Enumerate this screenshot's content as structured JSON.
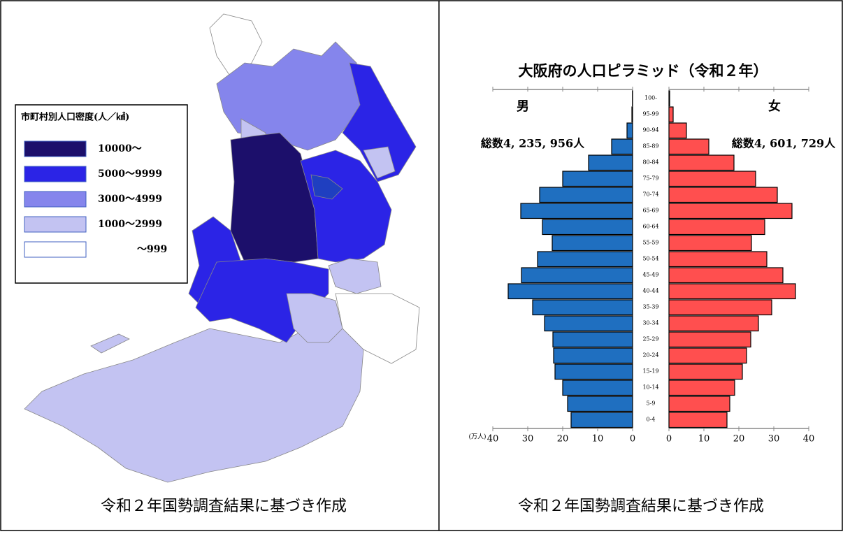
{
  "chart_data": [
    {
      "type": "map",
      "legend_title": "市町村別人口密度(人／㎢)",
      "legend": [
        {
          "label": "10000～",
          "color": "#1c0f6b"
        },
        {
          "label": "5000～9999",
          "color": "#2b24e6"
        },
        {
          "label": "3000～4999",
          "color": "#8585ec"
        },
        {
          "label": "1000～2999",
          "color": "#c3c3f2"
        },
        {
          "label": "～999",
          "color": "#ffffff"
        }
      ],
      "caption": "令和２年国勢調査結果に基づき作成"
    },
    {
      "type": "pyramid",
      "title": "大阪府の人口ピラミッド（令和２年）",
      "categories": [
        "0-4",
        "5-9",
        "10-14",
        "15-19",
        "20-24",
        "25-29",
        "30-34",
        "35-39",
        "40-44",
        "45-49",
        "50-54",
        "55-59",
        "60-64",
        "65-69",
        "70-74",
        "75-79",
        "80-84",
        "85-89",
        "90-94",
        "95-99",
        "100-"
      ],
      "series": [
        {
          "name": "男",
          "color": "#1f6fc0",
          "total": "総数4, 235, 956人",
          "values": [
            17.6,
            18.6,
            20,
            22.2,
            22.6,
            22.8,
            25.2,
            28.6,
            35.6,
            31.8,
            27.2,
            23,
            25.8,
            32,
            26.6,
            20,
            12.6,
            6,
            1.6,
            0.2,
            0.05
          ]
        },
        {
          "name": "女",
          "color": "#ff4f4f",
          "total": "総数4, 601, 729人",
          "values": [
            16.6,
            17.4,
            18.8,
            21,
            22.2,
            23.4,
            25.6,
            29.4,
            36.2,
            32.6,
            28,
            23.6,
            27.4,
            35.2,
            31,
            24.8,
            18.6,
            11.4,
            5,
            1.2,
            0.2
          ]
        }
      ],
      "xlim": [
        0,
        40
      ],
      "xticks": [
        0,
        10,
        20,
        30,
        40
      ],
      "unit": "(万人)",
      "caption": "令和２年国勢調査結果に基づき作成"
    }
  ]
}
